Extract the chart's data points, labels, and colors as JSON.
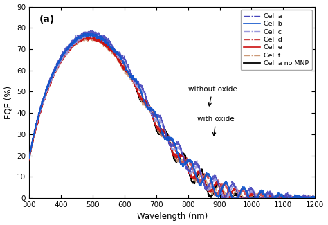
{
  "title": "(a)",
  "xlabel": "Wavelength (nm)",
  "ylabel": "EQE (%)",
  "xlim": [
    300,
    1200
  ],
  "ylim": [
    0,
    90
  ],
  "xticks": [
    300,
    400,
    500,
    600,
    700,
    800,
    900,
    1000,
    1100,
    1200
  ],
  "yticks": [
    0,
    10,
    20,
    30,
    40,
    50,
    60,
    70,
    80,
    90
  ],
  "annotation1": "without oxide",
  "annotation2": "with oxide",
  "colors": {
    "cell_a": "#4444bb",
    "cell_b": "#1155cc",
    "cell_c": "#9999dd",
    "cell_d": "#cc4444",
    "cell_e": "#cc1111",
    "cell_f": "#cc9977",
    "cell_no_mnp": "#000000"
  },
  "background_color": "#ffffff"
}
